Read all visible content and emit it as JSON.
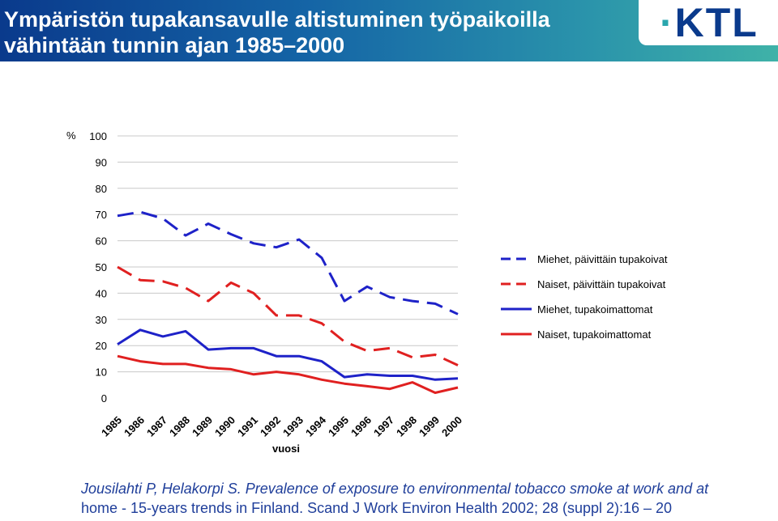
{
  "header": {
    "title_line1": "Ympäristön tupakansavulle altistuminen työpaikoilla",
    "title_line2": "vähintään tunnin ajan 1985–2000",
    "logo_text": "KTL"
  },
  "chart_data": {
    "type": "line",
    "title": "",
    "ylabel": "%",
    "xlabel": "vuosi",
    "ylim": [
      0,
      100
    ],
    "y_ticks": [
      0,
      10,
      20,
      30,
      40,
      50,
      60,
      70,
      80,
      90,
      100
    ],
    "x": [
      "1985",
      "1986",
      "1987",
      "1988",
      "1989",
      "1990",
      "1991",
      "1992",
      "1993",
      "1994",
      "1995",
      "1996",
      "1997",
      "1998",
      "1999",
      "2000"
    ],
    "grid": "horizontal",
    "legend_position": "right",
    "series": [
      {
        "name": "Miehet, päivittäin tupakoivat",
        "color": "#1e22c8",
        "dash": "dashed",
        "values": [
          69.5,
          71,
          68.5,
          62,
          66.5,
          62.5,
          59,
          57.5,
          60.5,
          53.5,
          37,
          42.5,
          38.5,
          37,
          36,
          32
        ]
      },
      {
        "name": "Naiset, päivittäin tupakoivat",
        "color": "#e02020",
        "dash": "dashed",
        "values": [
          50,
          45,
          44.5,
          42,
          37,
          44,
          40,
          31.5,
          31.5,
          28.5,
          21.5,
          18,
          19,
          15.5,
          16.5,
          12.5
        ]
      },
      {
        "name": "Miehet, tupakoimattomat",
        "color": "#1e22c8",
        "dash": "solid",
        "values": [
          20.5,
          26,
          23.5,
          25.5,
          18.5,
          19,
          19,
          16,
          16,
          14,
          8,
          9,
          8.5,
          8.5,
          7,
          7.5
        ]
      },
      {
        "name": "Naiset, tupakoimattomat",
        "color": "#e02020",
        "dash": "solid",
        "values": [
          16,
          14,
          13,
          13,
          11.5,
          11,
          9,
          10,
          9,
          7,
          5.5,
          4.5,
          3.5,
          6,
          2,
          4
        ]
      }
    ]
  },
  "citation": {
    "line1": "Jousilahti P, Helakorpi S. Prevalence of exposure to environmental tobacco smoke at work and at",
    "line2": "home - 15-years trends in Finland. Scand J Work Environ Health 2002; 28 (suppl 2):16 – 20"
  }
}
